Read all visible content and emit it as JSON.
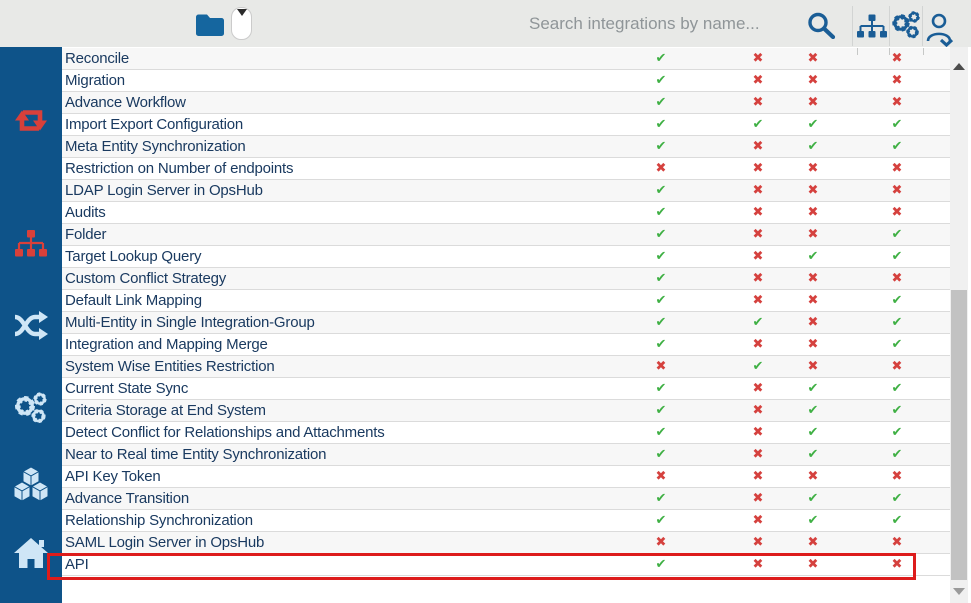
{
  "header": {
    "search_placeholder": "Search integrations by name..."
  },
  "sidebar": {
    "items": [
      {
        "id": "sync",
        "icon": "sync-arrows-icon",
        "color": "#d8403a"
      },
      {
        "id": "hierarchy",
        "icon": "sitemap-icon",
        "color": "#d8403a"
      },
      {
        "id": "shuffle",
        "icon": "shuffle-icon",
        "color": "#cfe6f6"
      },
      {
        "id": "settings",
        "icon": "gears-icon",
        "color": "#cfe6f6"
      },
      {
        "id": "modules",
        "icon": "cubes-icon",
        "color": "#cfe6f6"
      },
      {
        "id": "home",
        "icon": "home-icon",
        "color": "#cfe6f6"
      }
    ]
  },
  "table": {
    "columns": 4,
    "check_glyph": "✔",
    "cross_glyph": "✖",
    "highlighted_feature": "API",
    "rows": [
      {
        "feature": "Reconcile",
        "values": [
          true,
          false,
          false,
          false
        ]
      },
      {
        "feature": "Migration",
        "values": [
          true,
          false,
          false,
          false
        ]
      },
      {
        "feature": "Advance Workflow",
        "values": [
          true,
          false,
          false,
          false
        ]
      },
      {
        "feature": "Import Export Configuration",
        "values": [
          true,
          true,
          true,
          true
        ]
      },
      {
        "feature": "Meta Entity Synchronization",
        "values": [
          true,
          false,
          true,
          true
        ]
      },
      {
        "feature": "Restriction on Number of endpoints",
        "values": [
          false,
          false,
          false,
          false
        ]
      },
      {
        "feature": "LDAP Login Server in OpsHub",
        "values": [
          true,
          false,
          false,
          false
        ]
      },
      {
        "feature": "Audits",
        "values": [
          true,
          false,
          false,
          false
        ]
      },
      {
        "feature": "Folder",
        "values": [
          true,
          false,
          false,
          true
        ]
      },
      {
        "feature": "Target Lookup Query",
        "values": [
          true,
          false,
          true,
          true
        ]
      },
      {
        "feature": "Custom Conflict Strategy",
        "values": [
          true,
          false,
          false,
          false
        ]
      },
      {
        "feature": "Default Link Mapping",
        "values": [
          true,
          false,
          false,
          true
        ]
      },
      {
        "feature": "Multi-Entity in Single Integration-Group",
        "values": [
          true,
          true,
          false,
          true
        ]
      },
      {
        "feature": "Integration and Mapping Merge",
        "values": [
          true,
          false,
          false,
          true
        ]
      },
      {
        "feature": "System Wise Entities Restriction",
        "values": [
          false,
          true,
          false,
          false
        ]
      },
      {
        "feature": "Current State Sync",
        "values": [
          true,
          false,
          true,
          true
        ]
      },
      {
        "feature": "Criteria Storage at End System",
        "values": [
          true,
          false,
          true,
          true
        ]
      },
      {
        "feature": "Detect Conflict for Relationships and Attachments",
        "values": [
          true,
          false,
          true,
          true
        ]
      },
      {
        "feature": "Near to Real time Entity Synchronization",
        "values": [
          true,
          false,
          true,
          true
        ]
      },
      {
        "feature": "API Key Token",
        "values": [
          false,
          false,
          false,
          false
        ]
      },
      {
        "feature": "Advance Transition",
        "values": [
          true,
          false,
          true,
          true
        ]
      },
      {
        "feature": "Relationship Synchronization",
        "values": [
          true,
          false,
          true,
          true
        ]
      },
      {
        "feature": "SAML Login Server in OpsHub",
        "values": [
          false,
          false,
          false,
          false
        ]
      },
      {
        "feature": "API",
        "values": [
          true,
          false,
          false,
          false
        ]
      }
    ]
  },
  "colors": {
    "sidebar_bg": "#0e5389",
    "header_bg": "#e8e9e7",
    "header_icon_blue": "#1a5d96",
    "sidebar_icon_red": "#d8403a",
    "sidebar_icon_light": "#cfe6f6",
    "check_green": "#3fb044",
    "cross_red": "#d5413e",
    "highlight_red": "#dd1c1c",
    "row_text_navy": "#1a3a60"
  }
}
